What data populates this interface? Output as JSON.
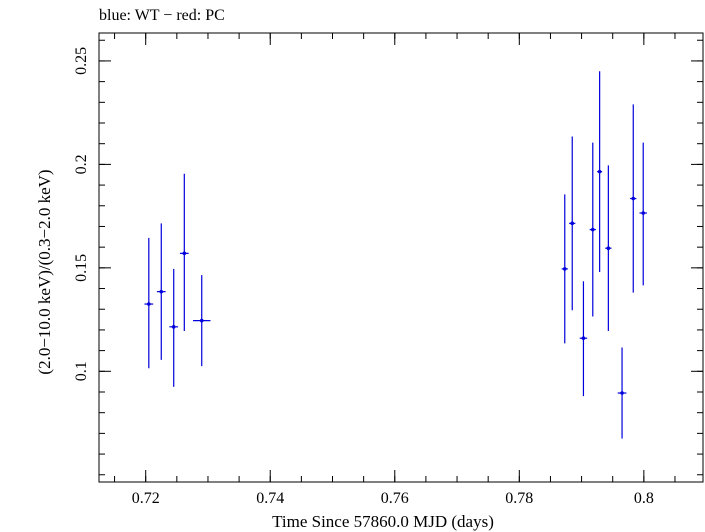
{
  "chart_data": {
    "type": "scatter",
    "title": "blue: WT − red: PC",
    "xlabel": "Time Since 57860.0 MJD (days)",
    "ylabel": "(2.0−10.0 keV)/(0.3−2.0 keV)",
    "xlim": [
      0.7125,
      0.8095
    ],
    "ylim": [
      0.0465,
      0.2635
    ],
    "x_ticks": [
      {
        "value": 0.72,
        "label": "0.72"
      },
      {
        "value": 0.74,
        "label": "0.74"
      },
      {
        "value": 0.76,
        "label": "0.76"
      },
      {
        "value": 0.78,
        "label": "0.78"
      },
      {
        "value": 0.8,
        "label": "0.8"
      }
    ],
    "y_ticks": [
      {
        "value": 0.1,
        "label": "0.1"
      },
      {
        "value": 0.15,
        "label": "0.15"
      },
      {
        "value": 0.2,
        "label": "0.2"
      },
      {
        "value": 0.25,
        "label": "0.25"
      }
    ],
    "x_minor_step": 0.005,
    "y_minor_step": 0.01,
    "grid": false,
    "series": [
      {
        "color": "#0000dd",
        "points": [
          {
            "x": 0.7205,
            "xerr": 0.0007,
            "y": 0.1325,
            "ylo": 0.1015,
            "yhi": 0.1645
          },
          {
            "x": 0.7225,
            "xerr": 0.0007,
            "y": 0.1385,
            "ylo": 0.1055,
            "yhi": 0.1715
          },
          {
            "x": 0.7245,
            "xerr": 0.0007,
            "y": 0.1215,
            "ylo": 0.0925,
            "yhi": 0.1495
          },
          {
            "x": 0.7262,
            "xerr": 0.0007,
            "y": 0.157,
            "ylo": 0.1195,
            "yhi": 0.1955
          },
          {
            "x": 0.729,
            "xerr": 0.0014,
            "y": 0.1245,
            "ylo": 0.1025,
            "yhi": 0.1465
          },
          {
            "x": 0.7873,
            "xerr": 0.0005,
            "y": 0.1495,
            "ylo": 0.1135,
            "yhi": 0.1855
          },
          {
            "x": 0.7885,
            "xerr": 0.0005,
            "y": 0.1715,
            "ylo": 0.1295,
            "yhi": 0.2135
          },
          {
            "x": 0.7903,
            "xerr": 0.0006,
            "y": 0.116,
            "ylo": 0.088,
            "yhi": 0.1435
          },
          {
            "x": 0.7918,
            "xerr": 0.0005,
            "y": 0.1685,
            "ylo": 0.1265,
            "yhi": 0.2105
          },
          {
            "x": 0.7929,
            "xerr": 0.0004,
            "y": 0.1965,
            "ylo": 0.148,
            "yhi": 0.245
          },
          {
            "x": 0.7943,
            "xerr": 0.0005,
            "y": 0.1595,
            "ylo": 0.1195,
            "yhi": 0.1995
          },
          {
            "x": 0.7965,
            "xerr": 0.0007,
            "y": 0.0895,
            "ylo": 0.0675,
            "yhi": 0.1115
          },
          {
            "x": 0.7983,
            "xerr": 0.0005,
            "y": 0.1835,
            "ylo": 0.138,
            "yhi": 0.229
          },
          {
            "x": 0.7999,
            "xerr": 0.0006,
            "y": 0.1765,
            "ylo": 0.1415,
            "yhi": 0.2105
          }
        ]
      }
    ]
  }
}
